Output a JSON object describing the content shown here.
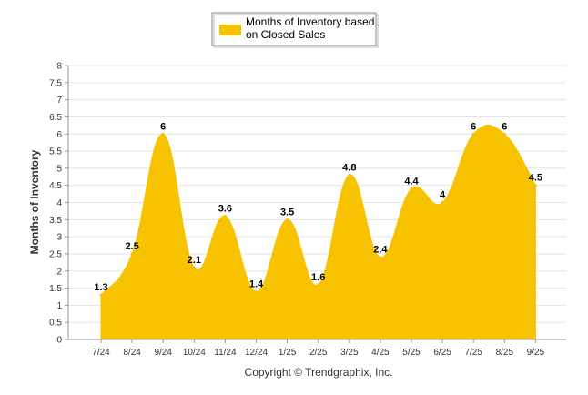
{
  "chart_data": {
    "type": "area",
    "categories": [
      "7/24",
      "8/24",
      "9/24",
      "10/24",
      "11/24",
      "12/24",
      "1/25",
      "2/25",
      "3/25",
      "4/25",
      "5/25",
      "6/25",
      "7/25",
      "8/25",
      "9/25"
    ],
    "series": [
      {
        "name": "Months of Inventory based on Closed Sales",
        "values": [
          1.3,
          2.5,
          6,
          2.1,
          3.6,
          1.4,
          3.5,
          1.6,
          4.8,
          2.4,
          4.4,
          4,
          6,
          6,
          4.5
        ],
        "color": "#F7C200"
      }
    ],
    "ylabel": "Months of Inventory",
    "xlabel": "",
    "ylim": [
      0,
      8
    ],
    "yticks": [
      "0",
      "0.5",
      "1",
      "1.5",
      "2",
      "2.5",
      "3",
      "3.5",
      "4",
      "4.5",
      "5",
      "5.5",
      "6",
      "6.5",
      "7",
      "7.5",
      "8"
    ],
    "grid": true,
    "legend_position": "top-center"
  },
  "legend": {
    "line1": "Months of Inventory based",
    "line2": "on Closed Sales"
  },
  "credit": "Copyright © Trendgraphix, Inc."
}
